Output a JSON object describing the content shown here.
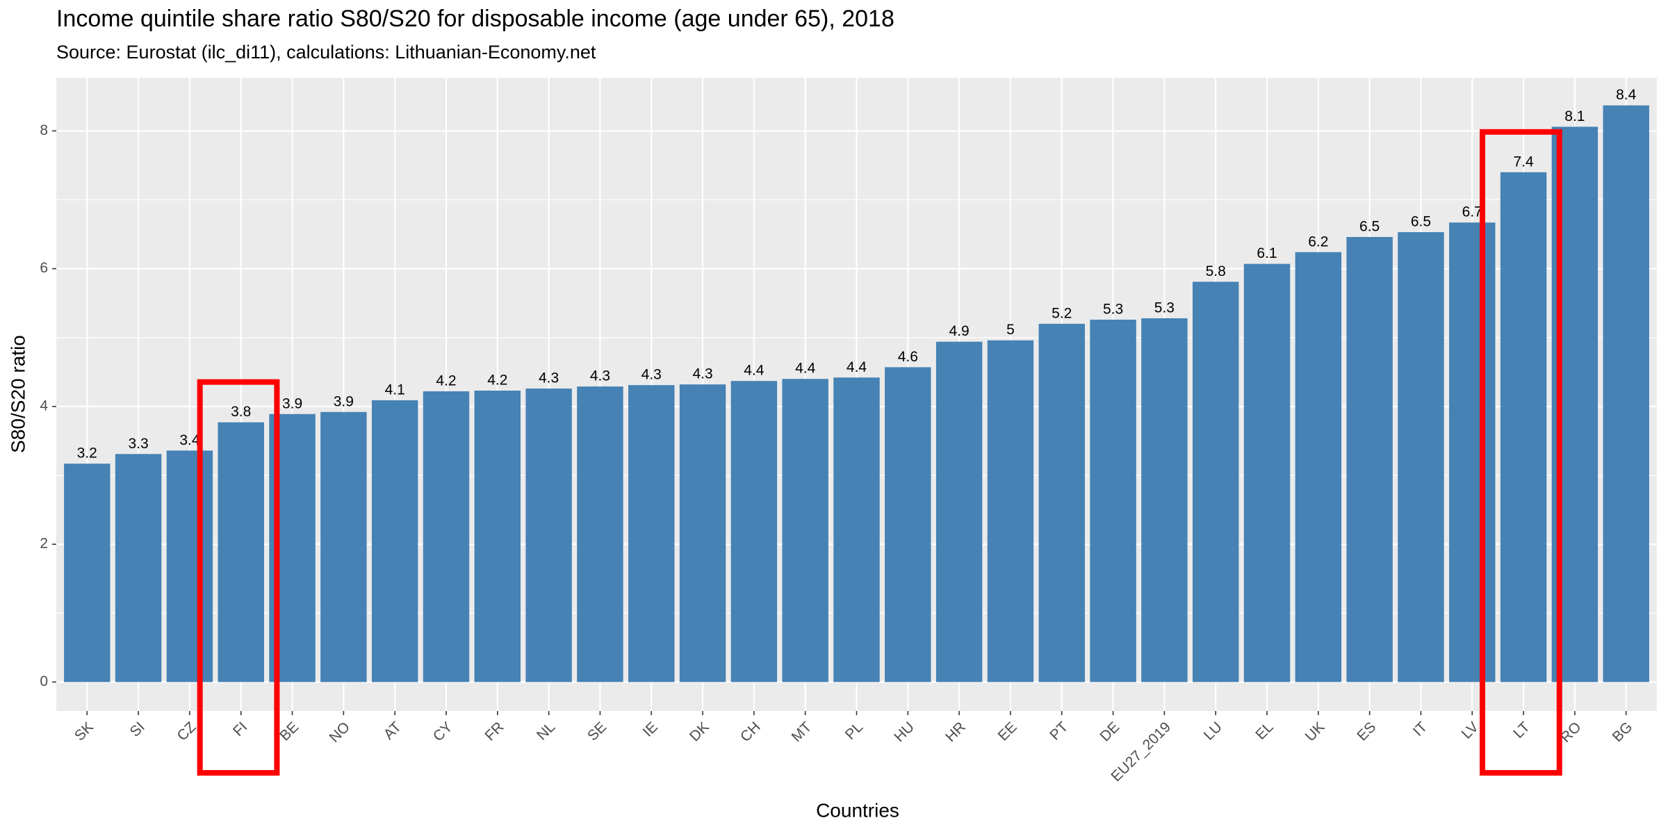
{
  "chart_data": {
    "type": "bar",
    "title": "Income quintile share ratio S80/S20 for disposable income (age under 65), 2018",
    "subtitle": "Source: Eurostat (ilc_di11), calculations: Lithuanian-Economy.net",
    "x_label": "Countries",
    "y_label": "S80/S20 ratio",
    "categories": [
      "SK",
      "SI",
      "CZ",
      "FI",
      "BE",
      "NO",
      "AT",
      "CY",
      "FR",
      "NL",
      "SE",
      "IE",
      "DK",
      "CH",
      "MT",
      "PL",
      "HU",
      "HR",
      "EE",
      "PT",
      "DE",
      "EU27_2019",
      "LU",
      "EL",
      "UK",
      "ES",
      "IT",
      "LV",
      "LT",
      "RO",
      "BG"
    ],
    "values": [
      3.17,
      3.31,
      3.36,
      3.77,
      3.89,
      3.92,
      4.09,
      4.22,
      4.23,
      4.26,
      4.29,
      4.31,
      4.32,
      4.37,
      4.4,
      4.42,
      4.57,
      4.94,
      4.96,
      5.2,
      5.26,
      5.28,
      5.81,
      6.07,
      6.24,
      6.46,
      6.53,
      6.67,
      7.4,
      8.06,
      8.37
    ],
    "value_labels": [
      "3.2",
      "3.3",
      "3.4",
      "3.8",
      "3.9",
      "3.9",
      "4.1",
      "4.2",
      "4.2",
      "4.3",
      "4.3",
      "4.3",
      "4.3",
      "4.4",
      "4.4",
      "4.4",
      "4.6",
      "4.9",
      "5",
      "5.2",
      "5.3",
      "5.3",
      "5.8",
      "6.1",
      "6.2",
      "6.5",
      "6.5",
      "6.7",
      "7.4",
      "8.1",
      "8.4"
    ],
    "color": "#4682b4",
    "ylim": [
      -0.42,
      8.77
    ],
    "yticks": [
      0,
      2,
      4,
      6,
      8
    ],
    "grid": true,
    "highlight": [
      "FI",
      "LT"
    ],
    "highlight_color": "#ff0000"
  }
}
